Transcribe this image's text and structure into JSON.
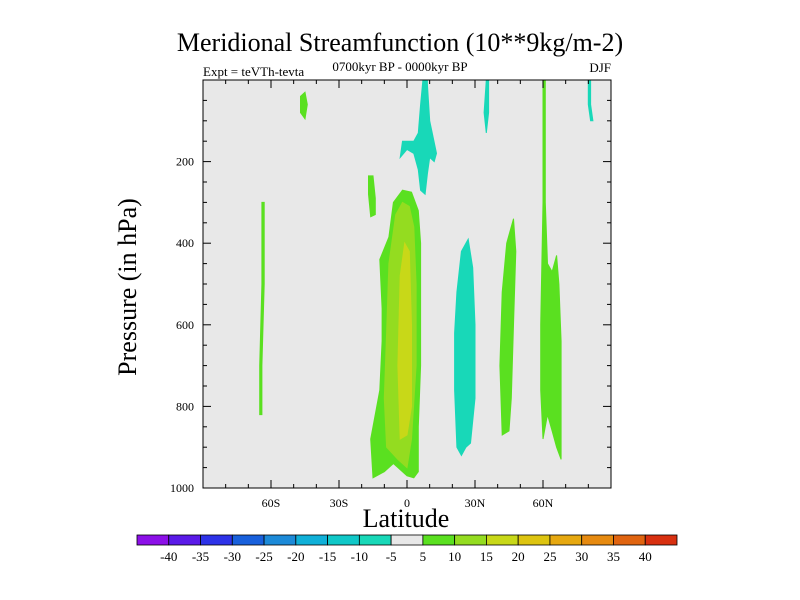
{
  "chart_data": {
    "type": "heatmap",
    "title": "Meridional Streamfunction (10**9kg/m-2)",
    "subtitle": "0700kyr BP - 0000kyr BP",
    "experiment_label": "Expt = teVTh-tevta",
    "season_label": "DJF",
    "xlabel": "Latitude",
    "ylabel": "Pressure (in hPa)",
    "x_axis": {
      "range": [
        -90,
        90
      ],
      "ticks": [
        {
          "value": -60,
          "label": "60S"
        },
        {
          "value": -30,
          "label": "30S"
        },
        {
          "value": 0,
          "label": "0"
        },
        {
          "value": 30,
          "label": "30N"
        },
        {
          "value": 60,
          "label": "60N"
        }
      ]
    },
    "y_axis": {
      "range": [
        1000,
        0
      ],
      "ticks": [
        200,
        400,
        600,
        800,
        1000
      ]
    },
    "colorbar": {
      "levels": [
        -40,
        -35,
        -30,
        -25,
        -20,
        -15,
        -10,
        -5,
        5,
        10,
        15,
        20,
        25,
        30,
        35,
        40
      ],
      "colors": [
        "#8c10e8",
        "#5a1ae8",
        "#2d32e8",
        "#1860dc",
        "#1c8ad8",
        "#10b0d8",
        "#10c8c8",
        "#18d8b8",
        "#e8e8e8",
        "#5ae020",
        "#94dc20",
        "#c8d818",
        "#ddc410",
        "#e6a810",
        "#e68a10",
        "#e06410",
        "#d83010"
      ]
    },
    "background_color": "#e8e8e8",
    "contours": [
      {
        "color": "#5ae020",
        "points": [
          [
            -15,
            975
          ],
          [
            -16,
            880
          ],
          [
            -12,
            760
          ],
          [
            -11,
            640
          ],
          [
            -11,
            560
          ],
          [
            -12,
            440
          ],
          [
            -8,
            385
          ],
          [
            -6,
            300
          ],
          [
            -2,
            270
          ],
          [
            2,
            275
          ],
          [
            5,
            320
          ],
          [
            6,
            400
          ],
          [
            6,
            520
          ],
          [
            6,
            700
          ],
          [
            5,
            850
          ],
          [
            5,
            960
          ],
          [
            3,
            975
          ],
          [
            0,
            970
          ],
          [
            -6,
            940
          ],
          [
            -10,
            960
          ]
        ]
      },
      {
        "color": "#94dc20",
        "points": [
          [
            -9,
            900
          ],
          [
            -10,
            780
          ],
          [
            -9,
            620
          ],
          [
            -8,
            450
          ],
          [
            -5,
            330
          ],
          [
            -2,
            300
          ],
          [
            1,
            310
          ],
          [
            3,
            360
          ],
          [
            4,
            500
          ],
          [
            4,
            700
          ],
          [
            2,
            880
          ],
          [
            0,
            950
          ],
          [
            -4,
            930
          ]
        ]
      },
      {
        "color": "#c8d818",
        "points": [
          [
            -3,
            880
          ],
          [
            -4,
            700
          ],
          [
            -3,
            480
          ],
          [
            -1,
            400
          ],
          [
            1,
            420
          ],
          [
            2,
            600
          ],
          [
            2,
            800
          ],
          [
            0,
            870
          ]
        ]
      },
      {
        "color": "#5ae020",
        "points": [
          [
            -16,
            335
          ],
          [
            -17,
            280
          ],
          [
            -17,
            235
          ],
          [
            -15,
            235
          ],
          [
            -14,
            290
          ],
          [
            -14,
            330
          ]
        ]
      },
      {
        "color": "#5ae020",
        "points": [
          [
            -47,
            80
          ],
          [
            -47,
            40
          ],
          [
            -45,
            30
          ],
          [
            -44,
            60
          ],
          [
            -45,
            95
          ]
        ]
      },
      {
        "color": "#5ae020",
        "points": [
          [
            -65,
            820
          ],
          [
            -65,
            700
          ],
          [
            -64,
            500
          ],
          [
            -64,
            300
          ],
          [
            -63,
            300
          ],
          [
            -63,
            500
          ],
          [
            -64,
            700
          ],
          [
            -64,
            820
          ]
        ]
      },
      {
        "color": "#5ae020",
        "points": [
          [
            42,
            870
          ],
          [
            41,
            700
          ],
          [
            42,
            520
          ],
          [
            44,
            400
          ],
          [
            47,
            340
          ],
          [
            48,
            420
          ],
          [
            47,
            600
          ],
          [
            46,
            780
          ],
          [
            45,
            860
          ]
        ]
      },
      {
        "color": "#5ae020",
        "points": [
          [
            60,
            0
          ],
          [
            61,
            0
          ],
          [
            61,
            100
          ],
          [
            61,
            300
          ],
          [
            62,
            450
          ],
          [
            64,
            470
          ],
          [
            66,
            430
          ],
          [
            67,
            500
          ],
          [
            68,
            640
          ],
          [
            68,
            780
          ],
          [
            68,
            930
          ],
          [
            66,
            900
          ],
          [
            64,
            860
          ],
          [
            62,
            820
          ],
          [
            60,
            880
          ],
          [
            59,
            760
          ],
          [
            59,
            600
          ],
          [
            60,
            300
          ],
          [
            60,
            100
          ]
        ]
      },
      {
        "color": "#18d8b8",
        "points": [
          [
            22,
            900
          ],
          [
            21,
            760
          ],
          [
            21,
            620
          ],
          [
            22,
            520
          ],
          [
            24,
            420
          ],
          [
            27,
            390
          ],
          [
            29,
            460
          ],
          [
            30,
            600
          ],
          [
            30,
            780
          ],
          [
            28,
            890
          ],
          [
            26,
            900
          ],
          [
            24,
            920
          ]
        ]
      },
      {
        "color": "#18d8b8",
        "points": [
          [
            9,
            0
          ],
          [
            9,
            10
          ],
          [
            10,
            100
          ],
          [
            13,
            180
          ],
          [
            12,
            200
          ],
          [
            10,
            190
          ],
          [
            9,
            230
          ],
          [
            8,
            280
          ],
          [
            6,
            270
          ],
          [
            5,
            220
          ],
          [
            3,
            180
          ],
          [
            0,
            170
          ],
          [
            -3,
            190
          ],
          [
            -2,
            150
          ],
          [
            3,
            150
          ],
          [
            5,
            130
          ],
          [
            6,
            60
          ],
          [
            7,
            0
          ]
        ]
      },
      {
        "color": "#18d8b8",
        "points": [
          [
            35,
            0
          ],
          [
            36,
            0
          ],
          [
            36,
            80
          ],
          [
            35,
            130
          ],
          [
            34,
            80
          ]
        ]
      },
      {
        "color": "#18d8b8",
        "points": [
          [
            80,
            0
          ],
          [
            81,
            0
          ],
          [
            81,
            60
          ],
          [
            82,
            100
          ],
          [
            81,
            100
          ],
          [
            80,
            60
          ]
        ]
      }
    ]
  }
}
